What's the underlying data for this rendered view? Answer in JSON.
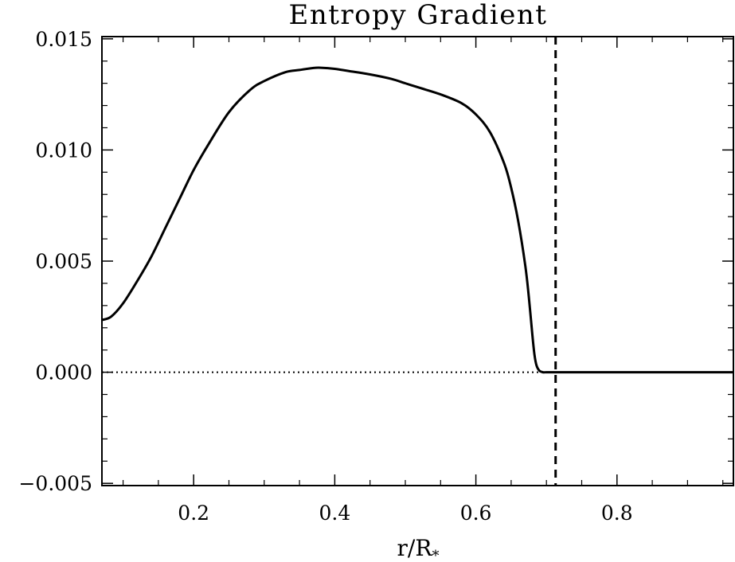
{
  "chart_data": {
    "type": "line",
    "title": "Entropy Gradient",
    "xlabel": "r/R",
    "xlabel_subscript": "*",
    "ylabel": "",
    "xlim": [
      0.07,
      0.965
    ],
    "ylim": [
      -0.0051,
      0.0151
    ],
    "xticks": [
      0.2,
      0.4,
      0.6,
      0.8
    ],
    "xtick_labels": [
      "0.2",
      "0.4",
      "0.6",
      "0.8"
    ],
    "yticks": [
      -0.005,
      0.0,
      0.005,
      0.01,
      0.015
    ],
    "ytick_labels": [
      "−0.005",
      "0.000",
      "0.005",
      "0.010",
      "0.015"
    ],
    "grid": false,
    "series": [
      {
        "color": "#000000",
        "style": "solid",
        "x": [
          0.07,
          0.083,
          0.1,
          0.12,
          0.14,
          0.16,
          0.18,
          0.2,
          0.22,
          0.25,
          0.28,
          0.3,
          0.33,
          0.35,
          0.37,
          0.38,
          0.4,
          0.42,
          0.45,
          0.48,
          0.5,
          0.52,
          0.55,
          0.58,
          0.6,
          0.62,
          0.64,
          0.65,
          0.66,
          0.67,
          0.675,
          0.68,
          0.683,
          0.686,
          0.69,
          0.695,
          0.7,
          0.71,
          0.72,
          0.75,
          0.8,
          0.85,
          0.9,
          0.965
        ],
        "values": [
          0.00235,
          0.0025,
          0.0031,
          0.0041,
          0.0052,
          0.0065,
          0.0078,
          0.0091,
          0.0102,
          0.0117,
          0.0127,
          0.0131,
          0.0135,
          0.0136,
          0.01369,
          0.0137,
          0.01365,
          0.01355,
          0.0134,
          0.0132,
          0.013,
          0.0128,
          0.0125,
          0.0121,
          0.0116,
          0.0108,
          0.0094,
          0.0083,
          0.0068,
          0.0048,
          0.0034,
          0.0017,
          0.0008,
          0.0003,
          7e-05,
          0.0,
          0.0,
          0.0,
          0.0,
          0.0,
          0.0,
          0.0,
          0.0,
          0.0
        ]
      }
    ],
    "reference_lines": [
      {
        "orientation": "horizontal",
        "value": 0.0,
        "style": "dotted",
        "color": "#000000"
      },
      {
        "orientation": "vertical",
        "value": 0.713,
        "style": "dashed",
        "color": "#000000"
      }
    ]
  }
}
